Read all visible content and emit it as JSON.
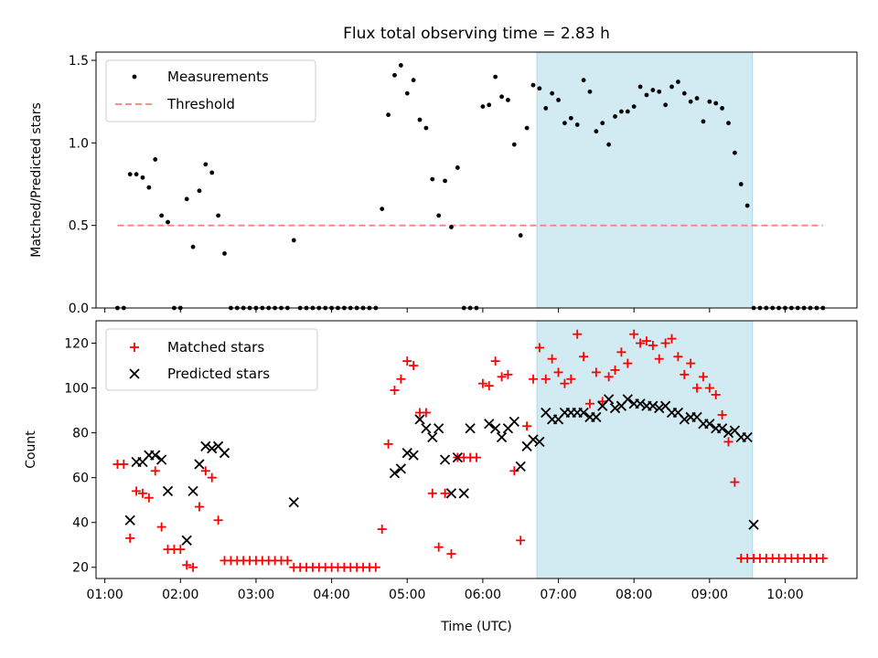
{
  "colors": {
    "measurement": "#000000",
    "threshold": "#ff7f7f",
    "matched": "#ff0000",
    "predicted": "#000000",
    "highlight": "#add8e6"
  },
  "chart_data": [
    {
      "type": "scatter",
      "title": "Flux total observing time = 2.83 h",
      "xlabel": "",
      "ylabel": "Matched/Predicted stars",
      "xlim": [
        "00:53",
        "10:57"
      ],
      "ylim": [
        0,
        1.55
      ],
      "yticks": [
        0.0,
        0.5,
        1.0,
        1.5
      ],
      "ytick_labels": [
        "0.0",
        "0.5",
        "1.0",
        "1.5"
      ],
      "highlight_span": [
        "06:43",
        "09:34"
      ],
      "legend": {
        "placement": "top-left",
        "entries": [
          "Measurements",
          "Threshold"
        ]
      },
      "threshold": {
        "name": "Threshold",
        "x": [
          "01:10",
          "10:30"
        ],
        "y": 0.5
      },
      "series": [
        {
          "name": "Measurements",
          "x": [
            "01:10",
            "01:15",
            "01:20",
            "01:25",
            "01:30",
            "01:35",
            "01:40",
            "01:45",
            "01:50",
            "01:55",
            "02:00",
            "02:05",
            "02:10",
            "02:15",
            "02:20",
            "02:25",
            "02:30",
            "02:35",
            "02:40",
            "02:45",
            "02:50",
            "02:55",
            "03:00",
            "03:05",
            "03:10",
            "03:15",
            "03:20",
            "03:25",
            "03:30",
            "03:35",
            "03:40",
            "03:45",
            "03:50",
            "03:55",
            "04:00",
            "04:05",
            "04:10",
            "04:15",
            "04:20",
            "04:25",
            "04:30",
            "04:35",
            "04:40",
            "04:45",
            "04:50",
            "04:55",
            "05:00",
            "05:05",
            "05:10",
            "05:15",
            "05:20",
            "05:25",
            "05:30",
            "05:35",
            "05:40",
            "05:45",
            "05:50",
            "05:55",
            "06:00",
            "06:05",
            "06:10",
            "06:15",
            "06:20",
            "06:25",
            "06:30",
            "06:35",
            "06:40",
            "06:45",
            "06:50",
            "06:55",
            "07:00",
            "07:05",
            "07:10",
            "07:15",
            "07:20",
            "07:25",
            "07:30",
            "07:35",
            "07:40",
            "07:45",
            "07:50",
            "07:55",
            "08:00",
            "08:05",
            "08:10",
            "08:15",
            "08:20",
            "08:25",
            "08:30",
            "08:35",
            "08:40",
            "08:45",
            "08:50",
            "08:55",
            "09:00",
            "09:05",
            "09:10",
            "09:15",
            "09:20",
            "09:25",
            "09:30",
            "09:35",
            "09:40",
            "09:45",
            "09:50",
            "09:55",
            "10:00",
            "10:05",
            "10:10",
            "10:15",
            "10:20",
            "10:25",
            "10:30"
          ],
          "y": [
            0.0,
            0.0,
            0.81,
            0.81,
            0.79,
            0.73,
            0.9,
            0.56,
            0.52,
            0.0,
            0.0,
            0.66,
            0.37,
            0.71,
            0.87,
            0.82,
            0.56,
            0.33,
            0.0,
            0.0,
            0.0,
            0.0,
            0.0,
            0.0,
            0.0,
            0.0,
            0.0,
            0.0,
            0.41,
            0.0,
            0.0,
            0.0,
            0.0,
            0.0,
            0.0,
            0.0,
            0.0,
            0.0,
            0.0,
            0.0,
            0.0,
            0.0,
            0.6,
            1.17,
            1.41,
            1.47,
            1.3,
            1.38,
            1.14,
            1.09,
            0.78,
            0.56,
            0.77,
            0.49,
            0.85,
            0.0,
            0.0,
            0.0,
            1.22,
            1.23,
            1.4,
            1.28,
            1.26,
            0.99,
            0.44,
            1.09,
            1.35,
            1.33,
            1.21,
            1.3,
            1.26,
            1.12,
            1.15,
            1.11,
            1.38,
            1.31,
            1.07,
            1.12,
            0.99,
            1.16,
            1.19,
            1.19,
            1.22,
            1.34,
            1.29,
            1.32,
            1.31,
            1.23,
            1.34,
            1.37,
            1.3,
            1.25,
            1.27,
            1.13,
            1.25,
            1.24,
            1.21,
            1.12,
            0.94,
            0.75,
            0.62,
            0.0,
            0.0,
            0.0,
            0.0,
            0.0,
            0.0,
            0.0,
            0.0,
            0.0,
            0.0,
            0.0,
            0.0
          ]
        }
      ]
    },
    {
      "type": "scatter",
      "title": "",
      "xlabel": "Time (UTC)",
      "ylabel": "Count",
      "xlim": [
        "00:53",
        "10:57"
      ],
      "ylim": [
        15,
        130
      ],
      "yticks": [
        20,
        40,
        60,
        80,
        100,
        120
      ],
      "ytick_labels": [
        "20",
        "40",
        "60",
        "80",
        "100",
        "120"
      ],
      "xticks": [
        "01:00",
        "02:00",
        "03:00",
        "04:00",
        "05:00",
        "06:00",
        "07:00",
        "08:00",
        "09:00",
        "10:00"
      ],
      "highlight_span": [
        "06:43",
        "09:34"
      ],
      "legend": {
        "placement": "top-left",
        "entries": [
          "Matched stars",
          "Predicted stars"
        ]
      },
      "series": [
        {
          "name": "Matched stars",
          "marker": "plus",
          "x": [
            "01:10",
            "01:15",
            "01:20",
            "01:25",
            "01:30",
            "01:35",
            "01:40",
            "01:45",
            "01:50",
            "01:55",
            "02:00",
            "02:05",
            "02:10",
            "02:15",
            "02:20",
            "02:25",
            "02:30",
            "02:35",
            "02:40",
            "02:45",
            "02:50",
            "02:55",
            "03:00",
            "03:05",
            "03:10",
            "03:15",
            "03:20",
            "03:25",
            "03:30",
            "03:35",
            "03:40",
            "03:45",
            "03:50",
            "03:55",
            "04:00",
            "04:05",
            "04:10",
            "04:15",
            "04:20",
            "04:25",
            "04:30",
            "04:35",
            "04:40",
            "04:45",
            "04:50",
            "04:55",
            "05:00",
            "05:05",
            "05:10",
            "05:15",
            "05:20",
            "05:25",
            "05:30",
            "05:35",
            "05:40",
            "05:45",
            "05:50",
            "05:55",
            "06:00",
            "06:05",
            "06:10",
            "06:15",
            "06:20",
            "06:25",
            "06:30",
            "06:35",
            "06:40",
            "06:45",
            "06:50",
            "06:55",
            "07:00",
            "07:05",
            "07:10",
            "07:15",
            "07:20",
            "07:25",
            "07:30",
            "07:35",
            "07:40",
            "07:45",
            "07:50",
            "07:55",
            "08:00",
            "08:05",
            "08:10",
            "08:15",
            "08:20",
            "08:25",
            "08:30",
            "08:35",
            "08:40",
            "08:45",
            "08:50",
            "08:55",
            "09:00",
            "09:05",
            "09:10",
            "09:15",
            "09:20",
            "09:25",
            "09:30",
            "09:35",
            "09:40",
            "09:45",
            "09:50",
            "09:55",
            "10:00",
            "10:05",
            "10:10",
            "10:15",
            "10:20",
            "10:25",
            "10:30"
          ],
          "y": [
            66,
            66,
            33,
            54,
            53,
            51,
            63,
            38,
            28,
            28,
            28,
            21,
            20,
            47,
            63,
            60,
            41,
            23,
            23,
            23,
            23,
            23,
            23,
            23,
            23,
            23,
            23,
            23,
            20,
            20,
            20,
            20,
            20,
            20,
            20,
            20,
            20,
            20,
            20,
            20,
            20,
            20,
            37,
            75,
            99,
            104,
            112,
            110,
            89,
            89,
            53,
            29,
            53,
            26,
            69,
            69,
            69,
            69,
            102,
            101,
            112,
            105,
            106,
            63,
            32,
            83,
            104,
            118,
            104,
            113,
            107,
            102,
            104,
            124,
            114,
            93,
            107,
            94,
            105,
            108,
            116,
            111,
            124,
            120,
            121,
            119,
            113,
            120,
            122,
            114,
            106,
            111,
            100,
            105,
            100,
            97,
            88,
            76,
            58,
            24,
            24,
            24,
            24,
            24,
            24,
            24,
            24,
            24,
            24,
            24,
            24,
            24,
            24
          ]
        },
        {
          "name": "Predicted stars",
          "marker": "x",
          "x": [
            "01:20",
            "01:25",
            "01:30",
            "01:35",
            "01:40",
            "01:45",
            "01:50",
            "02:05",
            "02:10",
            "02:15",
            "02:20",
            "02:25",
            "02:30",
            "02:35",
            "03:30",
            "04:50",
            "04:55",
            "05:00",
            "05:05",
            "05:10",
            "05:15",
            "05:20",
            "05:25",
            "05:30",
            "05:35",
            "05:40",
            "05:45",
            "05:50",
            "06:05",
            "06:10",
            "06:15",
            "06:20",
            "06:25",
            "06:30",
            "06:35",
            "06:40",
            "06:45",
            "06:50",
            "06:55",
            "07:00",
            "07:05",
            "07:10",
            "07:15",
            "07:20",
            "07:25",
            "07:30",
            "07:35",
            "07:40",
            "07:45",
            "07:50",
            "07:55",
            "08:00",
            "08:05",
            "08:10",
            "08:15",
            "08:20",
            "08:25",
            "08:30",
            "08:35",
            "08:40",
            "08:45",
            "08:50",
            "08:55",
            "09:00",
            "09:05",
            "09:10",
            "09:15",
            "09:20",
            "09:25",
            "09:30",
            "09:35"
          ],
          "y": [
            41,
            67,
            67,
            70,
            70,
            68,
            54,
            32,
            54,
            66,
            74,
            73,
            74,
            71,
            49,
            62,
            64,
            71,
            70,
            86,
            82,
            78,
            82,
            68,
            53,
            69,
            53,
            82,
            84,
            82,
            78,
            82,
            85,
            65,
            74,
            77,
            76,
            89,
            86,
            86,
            89,
            89,
            89,
            89,
            87,
            87,
            92,
            95,
            91,
            92,
            95,
            93,
            93,
            92,
            92,
            91,
            92,
            89,
            89,
            86,
            87,
            87,
            84,
            84,
            82,
            82,
            80,
            81,
            78,
            78,
            39
          ]
        }
      ]
    }
  ]
}
